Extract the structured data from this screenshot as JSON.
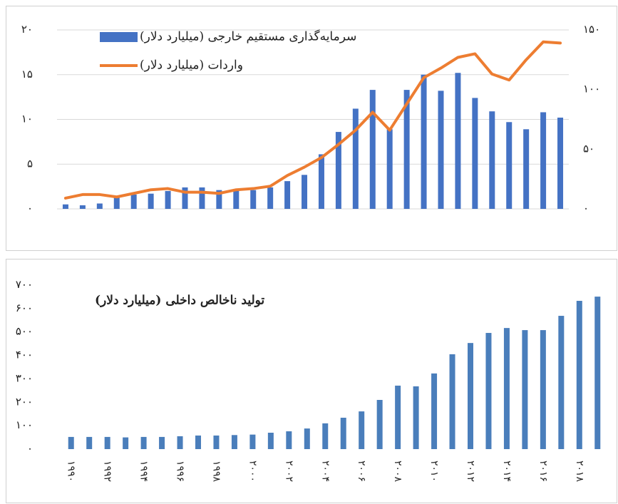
{
  "chart_data": [
    {
      "type": "bar",
      "legend": "top",
      "grid": true,
      "ylim": [
        0,
        20
      ],
      "yticks": [
        {
          "value": 0,
          "label": "۰"
        },
        {
          "value": 5,
          "label": "۵"
        },
        {
          "value": 10,
          "label": "۱۰"
        },
        {
          "value": 15,
          "label": "۱۵"
        },
        {
          "value": 20,
          "label": "۲۰"
        }
      ],
      "y2lim": [
        0,
        150
      ],
      "y2ticks": [
        {
          "value": 0,
          "label": "۰"
        },
        {
          "value": 50,
          "label": "۵۰"
        },
        {
          "value": 100,
          "label": "۱۰۰"
        },
        {
          "value": 150,
          "label": "۱۵۰"
        }
      ],
      "series": [
        {
          "name": "سرمایه‌گذاری مستقیم خارجی (میلیارد دلار)",
          "type": "bar",
          "color": "#4472c4",
          "values": [
            0.5,
            0.4,
            0.6,
            1.4,
            1.6,
            1.7,
            2.0,
            2.4,
            2.4,
            2.1,
            2.0,
            2.1,
            2.4,
            3.1,
            3.8,
            6.1,
            8.6,
            11.2,
            13.3,
            8.9,
            13.3,
            15.0,
            13.2,
            15.2,
            12.4,
            10.9,
            9.7,
            8.9,
            10.8,
            10.2
          ]
        },
        {
          "name": "واردات (میلیارد دلار)",
          "type": "line",
          "axis": "y2",
          "color": "#ed7d31",
          "values": [
            9,
            12,
            12,
            10,
            13,
            16,
            17,
            14,
            14,
            13,
            16,
            17,
            19,
            28,
            35,
            43,
            54,
            66,
            81,
            66,
            88,
            110,
            118,
            127,
            130,
            113,
            108,
            125,
            140,
            139
          ]
        }
      ]
    },
    {
      "type": "bar",
      "title": "تولید ناخالص داخلی (میلیارد دلار)",
      "grid": false,
      "color": "#4a7ebb",
      "ylim": [
        0,
        700
      ],
      "yticks": [
        {
          "value": 0,
          "label": "۰"
        },
        {
          "value": 100,
          "label": "۱۰۰"
        },
        {
          "value": 200,
          "label": "۲۰۰"
        },
        {
          "value": 300,
          "label": "۳۰۰"
        },
        {
          "value": 400,
          "label": "۴۰۰"
        },
        {
          "value": 500,
          "label": "۵۰۰"
        },
        {
          "value": 600,
          "label": "۶۰۰"
        },
        {
          "value": 700,
          "label": "۷۰۰"
        }
      ],
      "categories": [
        "۱۹۹۰",
        null,
        "۱۹۹۲",
        null,
        "۱۹۹۴",
        null,
        "۱۹۹۶",
        null,
        "۱۹۹۸",
        null,
        "۲۰۰۰",
        null,
        "۲۰۰۲",
        null,
        "۲۰۰۴",
        null,
        "۲۰۰۶",
        null,
        "۲۰۰۸",
        null,
        "۲۰۱۰",
        null,
        "۲۰۱۲",
        null,
        "۲۰۱۴",
        null,
        "۲۰۱۶",
        null,
        "۲۰۱۸",
        null
      ],
      "values": [
        52,
        52,
        52,
        50,
        52,
        52,
        55,
        58,
        58,
        60,
        62,
        70,
        76,
        88,
        110,
        134,
        161,
        210,
        271,
        268,
        323,
        405,
        453,
        496,
        517,
        508,
        508,
        569,
        633,
        651
      ]
    }
  ]
}
